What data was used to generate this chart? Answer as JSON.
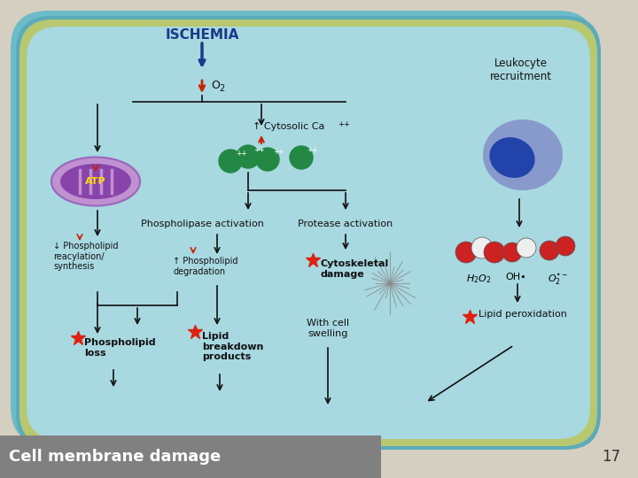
{
  "bg_color": "#d4cfc0",
  "cell_outer_color": "#7bbfcc",
  "cell_inner_color": "#a8d8e0",
  "title": "ISCHEMIA",
  "title_color": "#1a3a8a",
  "footer_text": "Cell membrane damage",
  "footer_bg": "#808080",
  "footer_text_color": "#ffffff",
  "slide_number": "17",
  "slide_number_color": "#333333",
  "red_arrow_color": "#cc2200",
  "dark_blue_arrow_color": "#1a3a8a",
  "black_color": "#111111",
  "red_star_color": "#dd2211",
  "green_ball_color": "#228844",
  "mito_outer_color": "#c090d0",
  "mito_inner_color": "#8844aa",
  "leuko_outer_color": "#8899cc",
  "leuko_inner_color": "#2244aa"
}
